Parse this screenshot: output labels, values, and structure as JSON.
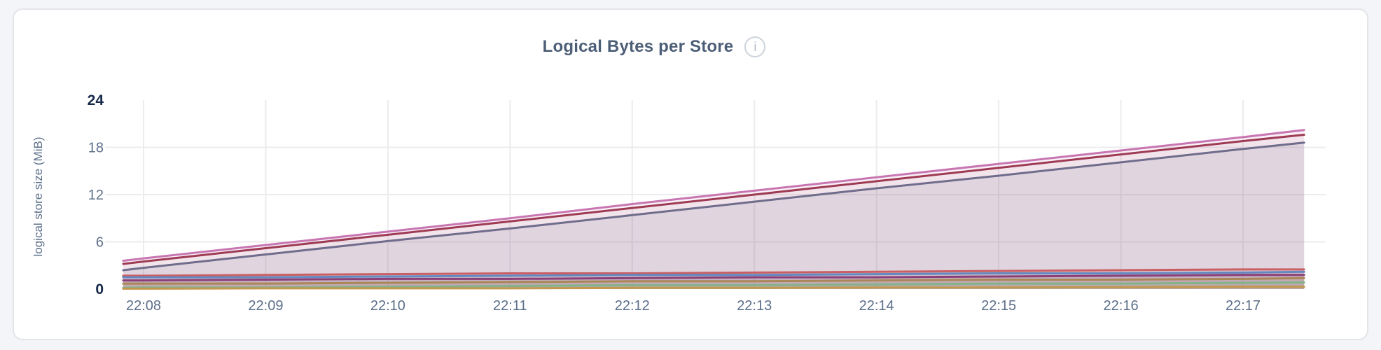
{
  "page": {
    "background_color": "#f4f5f9",
    "card_background": "#ffffff"
  },
  "header": {
    "info_icon_glyph": "i"
  },
  "chart_data": {
    "type": "line",
    "title": "Logical Bytes per Store",
    "ylabel": "logical store size (MiB)",
    "ylim": [
      0,
      24
    ],
    "yticks": [
      0,
      6,
      12,
      18,
      24
    ],
    "bold_yticks": [
      0,
      24
    ],
    "grid_yticks": [
      6,
      12,
      18
    ],
    "grid": "on",
    "legend_position": "none",
    "x_axis_note": "time of day HH:MM; t values are seconds after 22:00",
    "xticks": [
      {
        "t": 480,
        "label": "22:08"
      },
      {
        "t": 540,
        "label": "22:09"
      },
      {
        "t": 600,
        "label": "22:10"
      },
      {
        "t": 660,
        "label": "22:11"
      },
      {
        "t": 720,
        "label": "22:12"
      },
      {
        "t": 780,
        "label": "22:13"
      },
      {
        "t": 840,
        "label": "22:14"
      },
      {
        "t": 900,
        "label": "22:15"
      },
      {
        "t": 960,
        "label": "22:16"
      },
      {
        "t": 1020,
        "label": "22:17"
      }
    ],
    "x_points_seconds": [
      470,
      480,
      540,
      600,
      660,
      720,
      780,
      840,
      900,
      960,
      1020,
      1050
    ],
    "series": [
      {
        "id": "series-1",
        "color": "#c876b2",
        "fill_opacity": 0.1,
        "values": [
          3.6,
          3.9,
          5.6,
          7.3,
          9.0,
          10.8,
          12.5,
          14.2,
          15.9,
          17.6,
          19.3,
          20.2
        ]
      },
      {
        "id": "series-2",
        "color": "#9e3a54",
        "fill_opacity": 0.07,
        "values": [
          3.2,
          3.5,
          5.2,
          6.9,
          8.6,
          10.3,
          12.0,
          13.7,
          15.4,
          17.1,
          18.8,
          19.6
        ]
      },
      {
        "id": "series-3",
        "color": "#6f6c8c",
        "fill_opacity": 0.13,
        "values": [
          2.4,
          2.7,
          4.4,
          6.1,
          7.7,
          9.4,
          11.1,
          12.8,
          14.4,
          16.1,
          17.8,
          18.6
        ]
      },
      {
        "id": "series-4",
        "color": "#c95f63",
        "fill_opacity": 0.12,
        "values": [
          1.7,
          1.7,
          1.8,
          1.9,
          2.0,
          2.0,
          2.1,
          2.2,
          2.3,
          2.4,
          2.5,
          2.5
        ]
      },
      {
        "id": "series-5",
        "color": "#6488c0",
        "fill_opacity": 0.12,
        "values": [
          1.5,
          1.5,
          1.5,
          1.6,
          1.7,
          1.8,
          1.8,
          1.9,
          2.0,
          2.0,
          2.1,
          2.2
        ]
      },
      {
        "id": "series-6",
        "color": "#8a3f76",
        "fill_opacity": 0.12,
        "values": [
          1.1,
          1.1,
          1.2,
          1.3,
          1.3,
          1.4,
          1.5,
          1.5,
          1.6,
          1.7,
          1.8,
          1.8
        ]
      },
      {
        "id": "series-7",
        "color": "#aa8756",
        "fill_opacity": 0.12,
        "values": [
          0.7,
          0.7,
          0.7,
          0.8,
          0.9,
          1.0,
          1.0,
          1.1,
          1.2,
          1.2,
          1.3,
          1.4
        ]
      },
      {
        "id": "series-8",
        "color": "#84b289",
        "fill_opacity": 0.12,
        "values": [
          0.15,
          0.2,
          0.2,
          0.3,
          0.4,
          0.5,
          0.5,
          0.6,
          0.7,
          0.7,
          0.8,
          0.85
        ]
      },
      {
        "id": "series-9",
        "color": "#c2984f",
        "fill_opacity": 0.12,
        "values": [
          0.05,
          0.05,
          0.1,
          0.1,
          0.1,
          0.15,
          0.15,
          0.2,
          0.2,
          0.25,
          0.3,
          0.3
        ]
      }
    ]
  }
}
